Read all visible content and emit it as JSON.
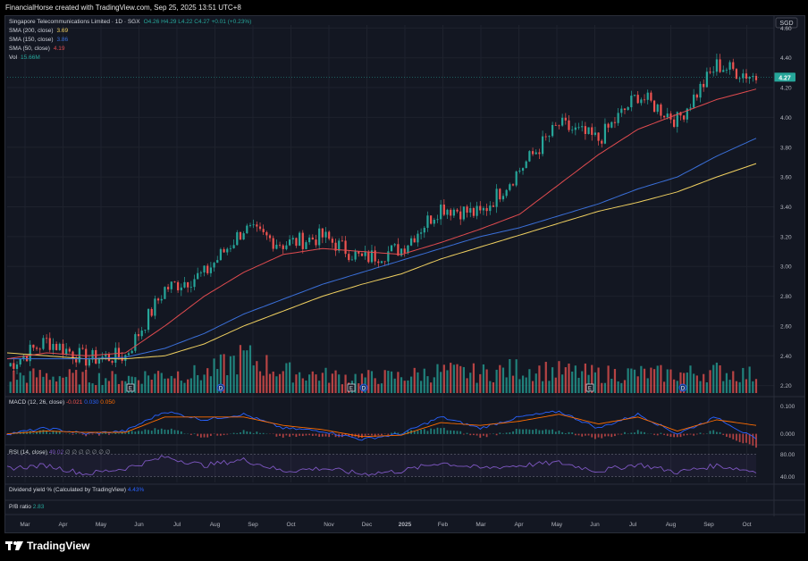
{
  "header": {
    "text": "FinancialHorse created with TradingView.com, Sep 25, 2025 13:51 UTC+8"
  },
  "legend": {
    "symbol": "Singapore Telecommunications Limited · 1D · SGX",
    "ohlc": "O4.26  H4.29  L4.22  C4.27  +0.01 (+0.23%)",
    "sma200_label": "SMA (200, close)",
    "sma200_value": "3.69",
    "sma150_label": "SMA (150, close)",
    "sma150_value": "3.86",
    "sma50_label": "SMA (50, close)",
    "sma50_value": "4.19",
    "vol_label": "Vol",
    "vol_value": "15.66M"
  },
  "price_scale": {
    "currency": "SGD",
    "ticks": [
      "4.60",
      "4.40",
      "4.20",
      "4.00",
      "3.80",
      "3.60",
      "3.40",
      "3.20",
      "3.00",
      "2.80",
      "2.60",
      "2.40",
      "2.20"
    ],
    "last_price": "4.27"
  },
  "macd": {
    "label": "MACD (12, 26, close)",
    "v1": "-0.021",
    "v2": "0.030",
    "v3": "0.050",
    "ticks": [
      "0.100",
      "0.000"
    ]
  },
  "rsi": {
    "label": "RSI (14, close)",
    "value": "49.02",
    "extras": "∅ ∅ ∅ ∅ ∅ ∅ ∅",
    "ticks": [
      "80.00",
      "40.00"
    ]
  },
  "dividend_yield": {
    "label": "Dividend yield % (Calculated by TradingView)",
    "value": "4.43%"
  },
  "pb_ratio": {
    "label": "P/B ratio",
    "value": "2.83"
  },
  "time_axis": [
    "Mar",
    "Apr",
    "May",
    "Jun",
    "Jul",
    "Aug",
    "Sep",
    "Oct",
    "Nov",
    "Dec",
    "2025",
    "Feb",
    "Mar",
    "Apr",
    "May",
    "Jun",
    "Jul",
    "Aug",
    "Sep",
    "Oct"
  ],
  "event_markers": [
    "E",
    "D",
    "E",
    "D",
    "E",
    "D"
  ],
  "footer": {
    "brand": "TradingView"
  },
  "colors": {
    "background": "#131722",
    "up": "#26a69a",
    "down": "#ef5350",
    "sma200": "#f0d060",
    "sma150": "#3a6fd8",
    "sma50": "#e04b4f",
    "macd_line": "#2962ff",
    "signal_line": "#ff6d00",
    "rsi_line": "#7e57c2"
  },
  "chart_data": [
    {
      "type": "candlestick",
      "title": "Singapore Telecommunications Limited · 1D · SGX",
      "ylabel": "SGD",
      "ylim": [
        2.15,
        4.62
      ],
      "x": [
        "2024-03",
        "2024-04",
        "2024-05",
        "2024-06",
        "2024-07",
        "2024-08",
        "2024-09",
        "2024-10",
        "2024-11",
        "2024-12",
        "2025-01",
        "2025-02",
        "2025-03",
        "2025-04",
        "2025-05",
        "2025-06",
        "2025-07",
        "2025-08",
        "2025-09",
        "2025-10"
      ],
      "series": [
        {
          "name": "Price",
          "values": [
            2.33,
            2.5,
            2.38,
            2.4,
            2.85,
            2.95,
            3.25,
            3.15,
            3.2,
            3.05,
            3.12,
            3.4,
            3.35,
            3.65,
            3.95,
            3.85,
            4.15,
            3.98,
            4.35,
            4.27
          ]
        },
        {
          "name": "SMA (200, close)",
          "values": [
            2.42,
            2.4,
            2.38,
            2.38,
            2.4,
            2.48,
            2.6,
            2.7,
            2.8,
            2.88,
            2.95,
            3.05,
            3.13,
            3.21,
            3.29,
            3.37,
            3.43,
            3.5,
            3.6,
            3.69
          ]
        },
        {
          "name": "SMA (150, close)",
          "values": [
            2.38,
            2.38,
            2.38,
            2.39,
            2.45,
            2.55,
            2.68,
            2.78,
            2.88,
            2.96,
            3.04,
            3.12,
            3.2,
            3.26,
            3.34,
            3.42,
            3.52,
            3.6,
            3.74,
            3.86
          ]
        },
        {
          "name": "SMA (50, close)",
          "values": [
            2.38,
            2.42,
            2.4,
            2.42,
            2.6,
            2.8,
            2.96,
            3.08,
            3.12,
            3.1,
            3.08,
            3.16,
            3.25,
            3.35,
            3.55,
            3.75,
            3.92,
            4.02,
            4.12,
            4.19
          ]
        }
      ],
      "last_price": 4.27
    },
    {
      "type": "bar",
      "title": "Vol",
      "series": [
        {
          "name": "Vol",
          "values": [
            0.42,
            0.45,
            0.4,
            0.38,
            0.5,
            0.48,
            0.92,
            0.55,
            0.45,
            0.4,
            0.42,
            0.55,
            0.5,
            0.62,
            0.55,
            0.48,
            0.5,
            0.48,
            0.55,
            0.45
          ]
        }
      ]
    },
    {
      "type": "line",
      "title": "MACD (12, 26, close)",
      "ylim": [
        -0.03,
        0.12
      ],
      "series": [
        {
          "name": "MACD",
          "values": [
            0.0,
            0.02,
            0.0,
            0.01,
            0.08,
            0.05,
            0.07,
            0.02,
            0.01,
            -0.02,
            0.0,
            0.06,
            0.02,
            0.06,
            0.08,
            0.02,
            0.07,
            0.0,
            0.06,
            -0.021
          ]
        },
        {
          "name": "Signal",
          "values": [
            0.0,
            0.01,
            0.005,
            0.005,
            0.06,
            0.06,
            0.06,
            0.03,
            0.015,
            -0.01,
            -0.005,
            0.04,
            0.03,
            0.045,
            0.07,
            0.035,
            0.06,
            0.01,
            0.05,
            0.03
          ]
        }
      ]
    },
    {
      "type": "line",
      "title": "RSI (14, close)",
      "ylim": [
        30,
        90
      ],
      "series": [
        {
          "name": "RSI",
          "values": [
            55,
            60,
            45,
            55,
            75,
            60,
            70,
            50,
            55,
            45,
            50,
            65,
            55,
            60,
            65,
            50,
            62,
            48,
            60,
            49.02
          ]
        }
      ]
    }
  ]
}
